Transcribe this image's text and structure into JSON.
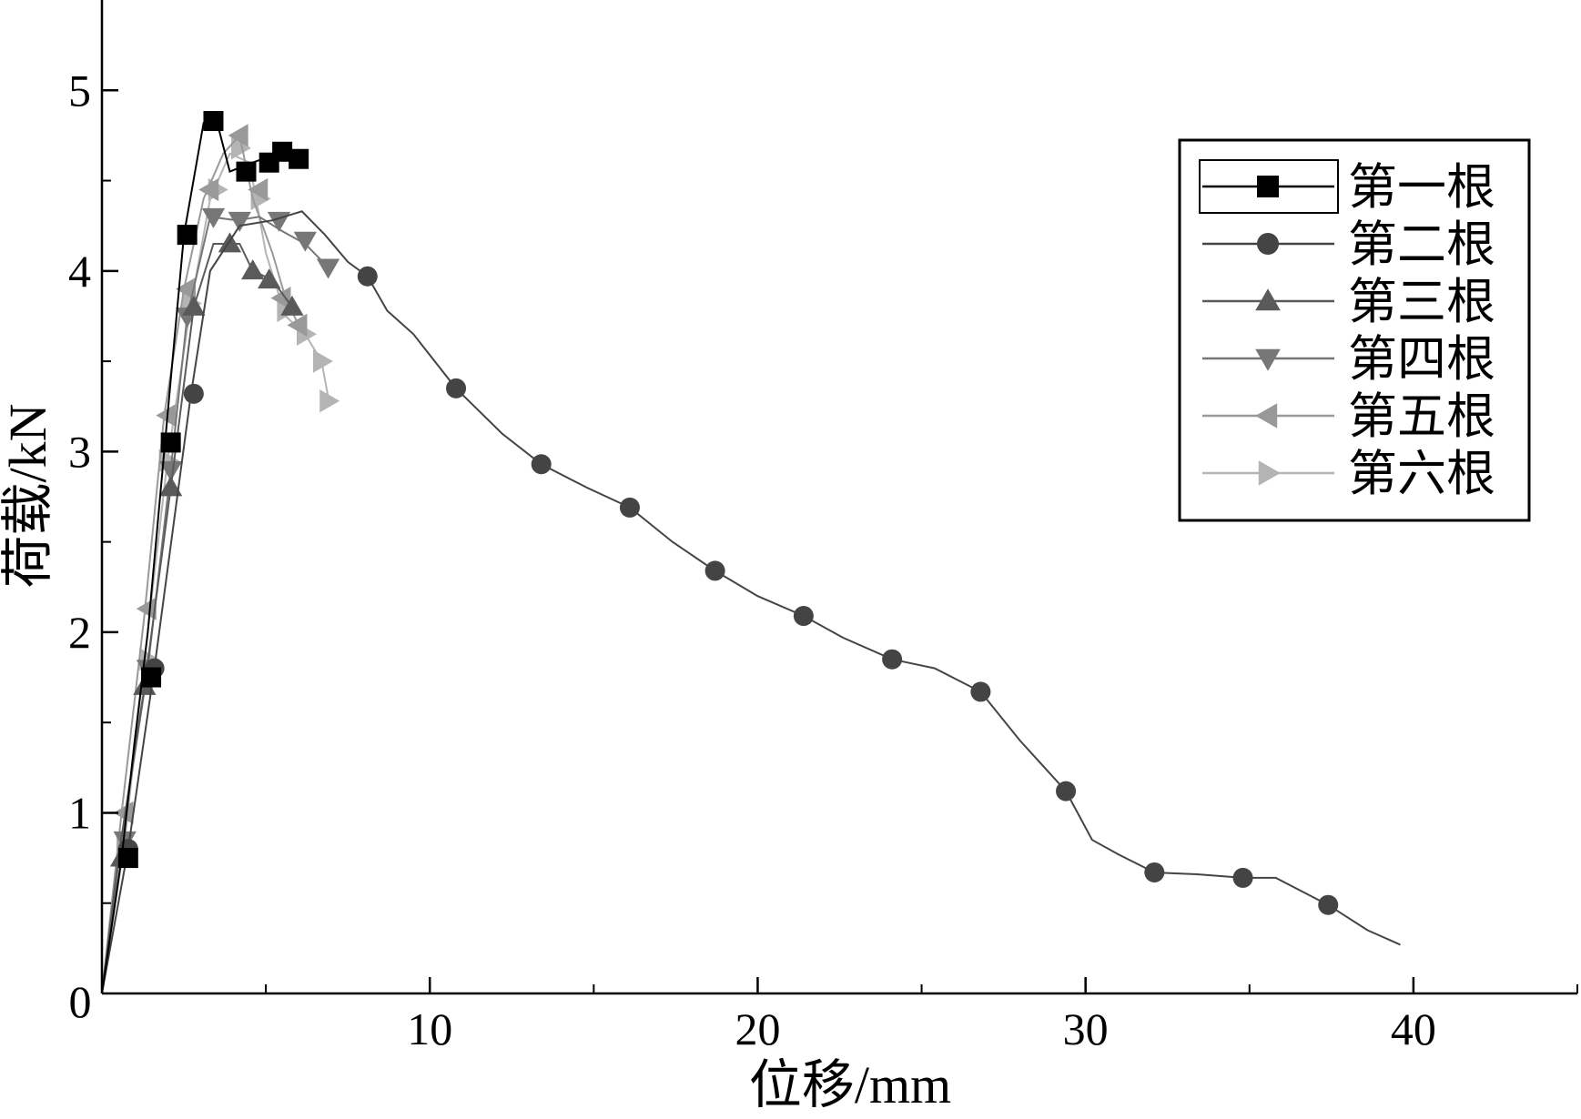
{
  "chart_data": {
    "type": "line",
    "title": "",
    "xlabel": "位移/mm",
    "ylabel": "荷载/kN",
    "xlim": [
      0,
      45
    ],
    "ylim": [
      0,
      5.5
    ],
    "x_ticks": [
      10,
      20,
      30,
      40
    ],
    "x_minor_ticks": [
      5,
      15,
      25,
      35,
      45
    ],
    "y_ticks": [
      1,
      2,
      3,
      4,
      5
    ],
    "y_minor_ticks": [
      0.5,
      1.5,
      2.5,
      3.5,
      4.5
    ],
    "origin_label": "0",
    "grid": false,
    "legend_position": "top-right",
    "series": [
      {
        "name": "第一根",
        "color": "#000000",
        "marker": "square",
        "line": [
          [
            0,
            0
          ],
          [
            0.6,
            0.75
          ],
          [
            1.0,
            1.4
          ],
          [
            1.4,
            2.0
          ],
          [
            1.9,
            3.0
          ],
          [
            2.5,
            4.2
          ],
          [
            3.1,
            4.82
          ],
          [
            3.5,
            4.83
          ],
          [
            3.9,
            4.55
          ],
          [
            4.3,
            4.58
          ],
          [
            4.9,
            4.62
          ],
          [
            5.5,
            4.66
          ],
          [
            6.1,
            4.63
          ]
        ],
        "points": [
          [
            0.8,
            0.75
          ],
          [
            1.5,
            1.75
          ],
          [
            2.1,
            3.05
          ],
          [
            2.6,
            4.2
          ],
          [
            3.4,
            4.83
          ],
          [
            4.4,
            4.55
          ],
          [
            5.1,
            4.6
          ],
          [
            5.5,
            4.66
          ],
          [
            6.0,
            4.62
          ]
        ]
      },
      {
        "name": "第二根",
        "color": "#444444",
        "marker": "circle",
        "line": [
          [
            0,
            0
          ],
          [
            0.8,
            0.8
          ],
          [
            1.6,
            1.8
          ],
          [
            2.7,
            3.3
          ],
          [
            3.3,
            4.0
          ],
          [
            4.2,
            4.25
          ],
          [
            5.2,
            4.28
          ],
          [
            6.1,
            4.33
          ],
          [
            6.8,
            4.2
          ],
          [
            7.5,
            4.05
          ],
          [
            8.1,
            3.97
          ],
          [
            8.7,
            3.78
          ],
          [
            9.5,
            3.65
          ],
          [
            10.8,
            3.35
          ],
          [
            12.2,
            3.1
          ],
          [
            13.4,
            2.93
          ],
          [
            14.8,
            2.8
          ],
          [
            16.1,
            2.69
          ],
          [
            17.4,
            2.5
          ],
          [
            18.7,
            2.34
          ],
          [
            20.0,
            2.2
          ],
          [
            21.4,
            2.09
          ],
          [
            22.6,
            1.97
          ],
          [
            24.1,
            1.85
          ],
          [
            25.4,
            1.8
          ],
          [
            26.8,
            1.67
          ],
          [
            28.0,
            1.4
          ],
          [
            29.4,
            1.12
          ],
          [
            30.2,
            0.85
          ],
          [
            31.0,
            0.77
          ],
          [
            32.1,
            0.67
          ],
          [
            33.4,
            0.66
          ],
          [
            34.8,
            0.64
          ],
          [
            35.8,
            0.64
          ],
          [
            37.4,
            0.49
          ],
          [
            38.6,
            0.35
          ],
          [
            39.6,
            0.27
          ]
        ],
        "points": [
          [
            0.8,
            0.8
          ],
          [
            1.6,
            1.8
          ],
          [
            2.8,
            3.32
          ],
          [
            8.1,
            3.97
          ],
          [
            10.8,
            3.35
          ],
          [
            13.4,
            2.93
          ],
          [
            16.1,
            2.69
          ],
          [
            18.7,
            2.34
          ],
          [
            21.4,
            2.09
          ],
          [
            24.1,
            1.85
          ],
          [
            26.8,
            1.67
          ],
          [
            29.4,
            1.12
          ],
          [
            32.1,
            0.67
          ],
          [
            34.8,
            0.64
          ],
          [
            37.4,
            0.49
          ]
        ]
      },
      {
        "name": "第三根",
        "color": "#5a5a5a",
        "marker": "triangle-up",
        "line": [
          [
            0,
            0
          ],
          [
            0.5,
            0.75
          ],
          [
            1.3,
            1.7
          ],
          [
            2.1,
            2.8
          ],
          [
            2.8,
            3.8
          ],
          [
            3.4,
            4.15
          ],
          [
            4.2,
            4.15
          ],
          [
            4.6,
            4.0
          ],
          [
            5.2,
            3.95
          ],
          [
            5.8,
            3.8
          ],
          [
            6.0,
            3.77
          ]
        ],
        "points": [
          [
            0.6,
            0.75
          ],
          [
            1.3,
            1.7
          ],
          [
            2.1,
            2.8
          ],
          [
            2.8,
            3.8
          ],
          [
            3.9,
            4.15
          ],
          [
            4.6,
            4.0
          ],
          [
            5.1,
            3.95
          ],
          [
            5.8,
            3.8
          ]
        ]
      },
      {
        "name": "第四根",
        "color": "#777777",
        "marker": "triangle-down",
        "line": [
          [
            0,
            0
          ],
          [
            0.6,
            0.85
          ],
          [
            1.4,
            1.8
          ],
          [
            2.1,
            2.9
          ],
          [
            2.6,
            3.75
          ],
          [
            3.3,
            4.3
          ],
          [
            4.1,
            4.28
          ],
          [
            4.8,
            4.3
          ],
          [
            5.5,
            4.22
          ],
          [
            6.2,
            4.15
          ],
          [
            6.9,
            4.02
          ]
        ],
        "points": [
          [
            0.7,
            0.85
          ],
          [
            1.4,
            1.8
          ],
          [
            2.1,
            2.9
          ],
          [
            2.6,
            3.75
          ],
          [
            3.4,
            4.3
          ],
          [
            4.2,
            4.28
          ],
          [
            5.4,
            4.28
          ],
          [
            6.2,
            4.17
          ],
          [
            6.9,
            4.02
          ]
        ]
      },
      {
        "name": "第五根",
        "color": "#999999",
        "marker": "triangle-left",
        "line": [
          [
            0,
            0
          ],
          [
            0.6,
            1.0
          ],
          [
            1.3,
            2.1
          ],
          [
            1.9,
            3.2
          ],
          [
            2.5,
            3.9
          ],
          [
            3.1,
            4.4
          ],
          [
            3.7,
            4.65
          ],
          [
            4.2,
            4.75
          ],
          [
            4.6,
            4.4
          ],
          [
            5.2,
            4.1
          ],
          [
            5.6,
            3.85
          ],
          [
            6.0,
            3.7
          ]
        ],
        "points": [
          [
            0.7,
            1.0
          ],
          [
            1.4,
            2.13
          ],
          [
            2.0,
            3.2
          ],
          [
            2.6,
            3.9
          ],
          [
            3.3,
            4.45
          ],
          [
            4.2,
            4.75
          ],
          [
            4.8,
            4.45
          ],
          [
            5.5,
            3.85
          ],
          [
            6.0,
            3.7
          ]
        ]
      },
      {
        "name": "第六根",
        "color": "#b4b4b4",
        "marker": "triangle-right",
        "line": [
          [
            0,
            0
          ],
          [
            0.7,
            0.85
          ],
          [
            1.3,
            1.85
          ],
          [
            2.0,
            2.95
          ],
          [
            2.7,
            3.8
          ],
          [
            3.3,
            4.4
          ],
          [
            3.9,
            4.65
          ],
          [
            4.5,
            4.6
          ],
          [
            5.0,
            4.1
          ],
          [
            5.6,
            3.75
          ],
          [
            6.2,
            3.65
          ],
          [
            6.7,
            3.5
          ],
          [
            6.9,
            3.3
          ]
        ],
        "points": [
          [
            0.7,
            0.82
          ],
          [
            1.4,
            1.85
          ],
          [
            2.0,
            2.95
          ],
          [
            2.7,
            3.82
          ],
          [
            3.5,
            4.45
          ],
          [
            4.2,
            4.68
          ],
          [
            4.8,
            4.4
          ],
          [
            5.6,
            3.78
          ],
          [
            6.2,
            3.65
          ],
          [
            6.7,
            3.5
          ],
          [
            6.9,
            3.28
          ]
        ]
      }
    ]
  }
}
